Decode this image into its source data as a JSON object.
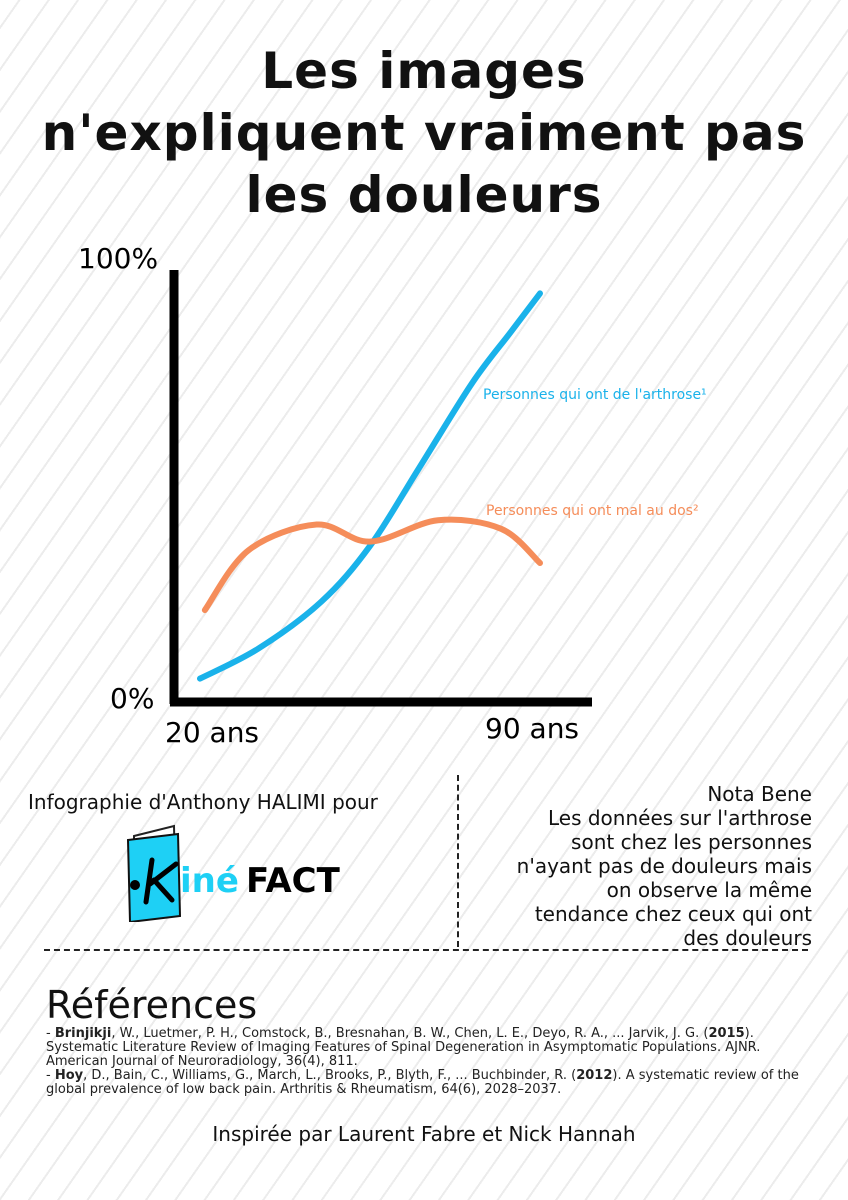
{
  "title": [
    "Les images",
    "n'expliquent vraiment pas",
    "les douleurs"
  ],
  "chart_data": {
    "type": "line",
    "title": "Les images n'expliquent vraiment pas les douleurs",
    "xlabel": "",
    "ylabel": "",
    "x_tick_labels": [
      "20 ans",
      "90 ans"
    ],
    "y_tick_labels": [
      "0%",
      "100%"
    ],
    "xlim": [
      20,
      90
    ],
    "ylim": [
      0,
      100
    ],
    "grid": false,
    "series": [
      {
        "name": "Personnes qui ont de l'arthrose¹",
        "color": "#1ab2ea",
        "x": [
          20,
          32,
          45,
          55,
          65,
          76,
          84,
          90
        ],
        "y": [
          5,
          12,
          23,
          36,
          54,
          74,
          86,
          95
        ]
      },
      {
        "name": "Personnes qui ont mal au dos²",
        "color": "#f58d5a",
        "x": [
          21,
          30,
          44,
          55,
          69,
          82,
          90
        ],
        "y": [
          21,
          35,
          41,
          37,
          42,
          40,
          32
        ]
      }
    ]
  },
  "credit": "Infographie d'Anthony HALIMI pour",
  "logo": {
    "part1": "iné",
    "part2": "FACT",
    "letter": "K"
  },
  "nota": {
    "title": "Nota Bene",
    "lines": [
      "Les données sur l'arthrose",
      "sont chez les personnes",
      "n'ayant pas de douleurs mais",
      "on observe la même",
      "tendance chez ceux qui ont",
      "des douleurs"
    ]
  },
  "references": {
    "heading": "Références",
    "items": [
      {
        "author": "Brinjikji",
        "text1": ", W., Luetmer, P. H., Comstock, B., Bresnahan, B. W., Chen, L. E., Deyo, R. A., ... Jarvik, J. G. (",
        "year": "2015",
        "text2": "). Systematic Literature Review of Imaging Features of Spinal Degeneration in Asymptomatic Populations. AJNR. American Journal of Neuroradiology, 36(4), 811."
      },
      {
        "author": "Hoy",
        "text1": ", D., Bain, C., Williams, G., March, L., Brooks, P., Blyth, F., ... Buchbinder, R. (",
        "year": "2012",
        "text2": "). A systematic review of the global prevalence of low back pain. Arthritis & Rheumatism, 64(6), 2028–2037."
      }
    ]
  },
  "inspired": "Inspirée par Laurent Fabre et Nick Hannah"
}
